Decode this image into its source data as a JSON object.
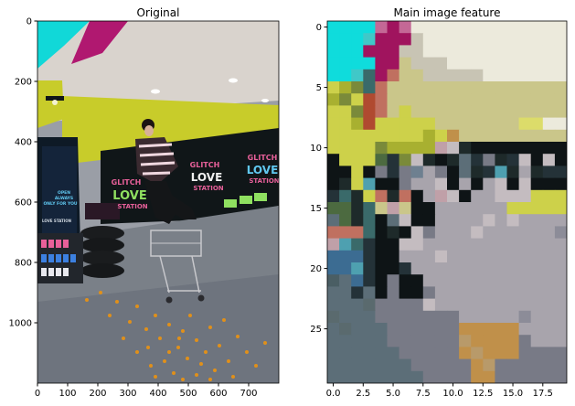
{
  "chart_data": [
    {
      "type": "image",
      "title": "Original",
      "xlim": [
        0,
        800
      ],
      "ylim": [
        1200,
        0
      ],
      "xticks": [
        0,
        100,
        200,
        300,
        400,
        500,
        600,
        700
      ],
      "yticks": [
        0,
        200,
        400,
        600,
        800,
        1000
      ],
      "image_texts": [
        "GLITCH",
        "LOVE",
        "STATION",
        "GLITCH",
        "LOVE",
        "STATION",
        "GLITCH",
        "LOVE",
        "STATION",
        "OPEN",
        "ALWAYS",
        "ONLY FOR YOU",
        "LOVE STATION"
      ],
      "colors": {
        "cyan": "#11d8d8",
        "magenta": "#b01870",
        "ceiling": "#d9d3cd",
        "yellow": "#c8cc2a",
        "dark": "#101618",
        "floor": "#7a8088",
        "orange": "#e0901a",
        "pink": "#e8609a",
        "green": "#8fe060",
        "blue": "#3c80e0"
      }
    },
    {
      "type": "heatmap",
      "title": "Main image feature",
      "xlim": [
        -0.5,
        19.5
      ],
      "ylim": [
        29.5,
        -0.5
      ],
      "xticks": [
        0.0,
        2.5,
        5.0,
        7.5,
        10.0,
        12.5,
        15.0,
        17.5
      ],
      "xtick_labels": [
        "0.0",
        "2.5",
        "5.0",
        "7.5",
        "10.0",
        "12.5",
        "15.0",
        "17.5"
      ],
      "yticks": [
        0,
        5,
        10,
        15,
        20,
        25
      ],
      "grid_size": [
        20,
        30
      ],
      "palette": {
        "c": "#0fdcdc",
        "C": "#40c8c8",
        "m": "#a0145e",
        "M": "#c46896",
        "w": "#d8d4ce",
        "W": "#eceadc",
        "e": "#c8c4b4",
        "b": "#cac68a",
        "y": "#cdd14a",
        "Y": "#dcdc6a",
        "o": "#a8b030",
        "g": "#7a8a3a",
        "G": "#4c6a40",
        "r": "#b04a30",
        "R": "#c07060",
        "P": "#c0a0a8",
        "k": "#0e1416",
        "K": "#1e2a2a",
        "d": "#243238",
        "t": "#3a6a6a",
        "s": "#5c6e78",
        "S": "#6e8090",
        "v": "#787a86",
        "u": "#8c8c98",
        "V": "#a8a4ac",
        "L": "#c4bcc0",
        "B": "#3c6c92",
        "T": "#4ea0b0",
        "n": "#80888c",
        "x": "#7a9aa0",
        "j": "#c0904a",
        "J": "#b89a6a",
        "h": "#8a8070",
        "f": "#9a9aa0",
        "q": "#5a6a6e",
        "Q": "#4a5e64"
      },
      "grid": [
        "ccccMmMWWWWWWWWWWWWW",
        "cccCmmmeWWWWWWWWWWWW",
        "cccmmmeeWWWWWWWWWWWW",
        "ccccmmbeeeWWWWWWWWWW",
        "ccCtmRbbeeeeeWWWWWWW",
        "yogtRbbbbbbbbbbbbbbb",
        "ogyrRbbbbbbbbbbbbbbb",
        "yygrRbybbbbbbbbbbbbb",
        "yyoryyyyybbbbbbbYYWW",
        "yyyyyyyyoyjbbbbbbbbb",
        "yyyygooooPLKkkkkkkkk",
        "kyyyGdgLKkKsdvKdLkLk",
        "kkykvdvSVvksKdTKVKdd",
        "kKyTkkvVVLkVkVLkLkkk",
        "dtKyRKRkVPLkVVLLLyyy",
        "GGKtbPbkkVVVVVVyyyyy",
        "sGKtksLkkVVVVLVLVVVV",
        "RRRtkKkLvVVVLVVVVVVu",
        "PTtdkkLLVVVVVVVVVVVV",
        "BBBdkkVVVLVVVVVVVVVV",
        "BBTdkkdVVVVVVVVVVVVV",
        "QsBdkvkkVVVVVVVVVVVV",
        "ssdskvkkvVVVVVVVVVVV",
        "sssqvvvvLVVVVVVVVVVV",
        "qsssvvvvvvvVVVVVuVVV",
        "sqsssvvvvvvjjjjjVVVV",
        "sssssvvvvvvJjjjjvVVV",
        "ssssssvvvvvjJjjjvvvv",
        "sssssssvvvvvjJvvvvvv",
        "ssssssssvvvvjjvvvvvv"
      ]
    }
  ]
}
